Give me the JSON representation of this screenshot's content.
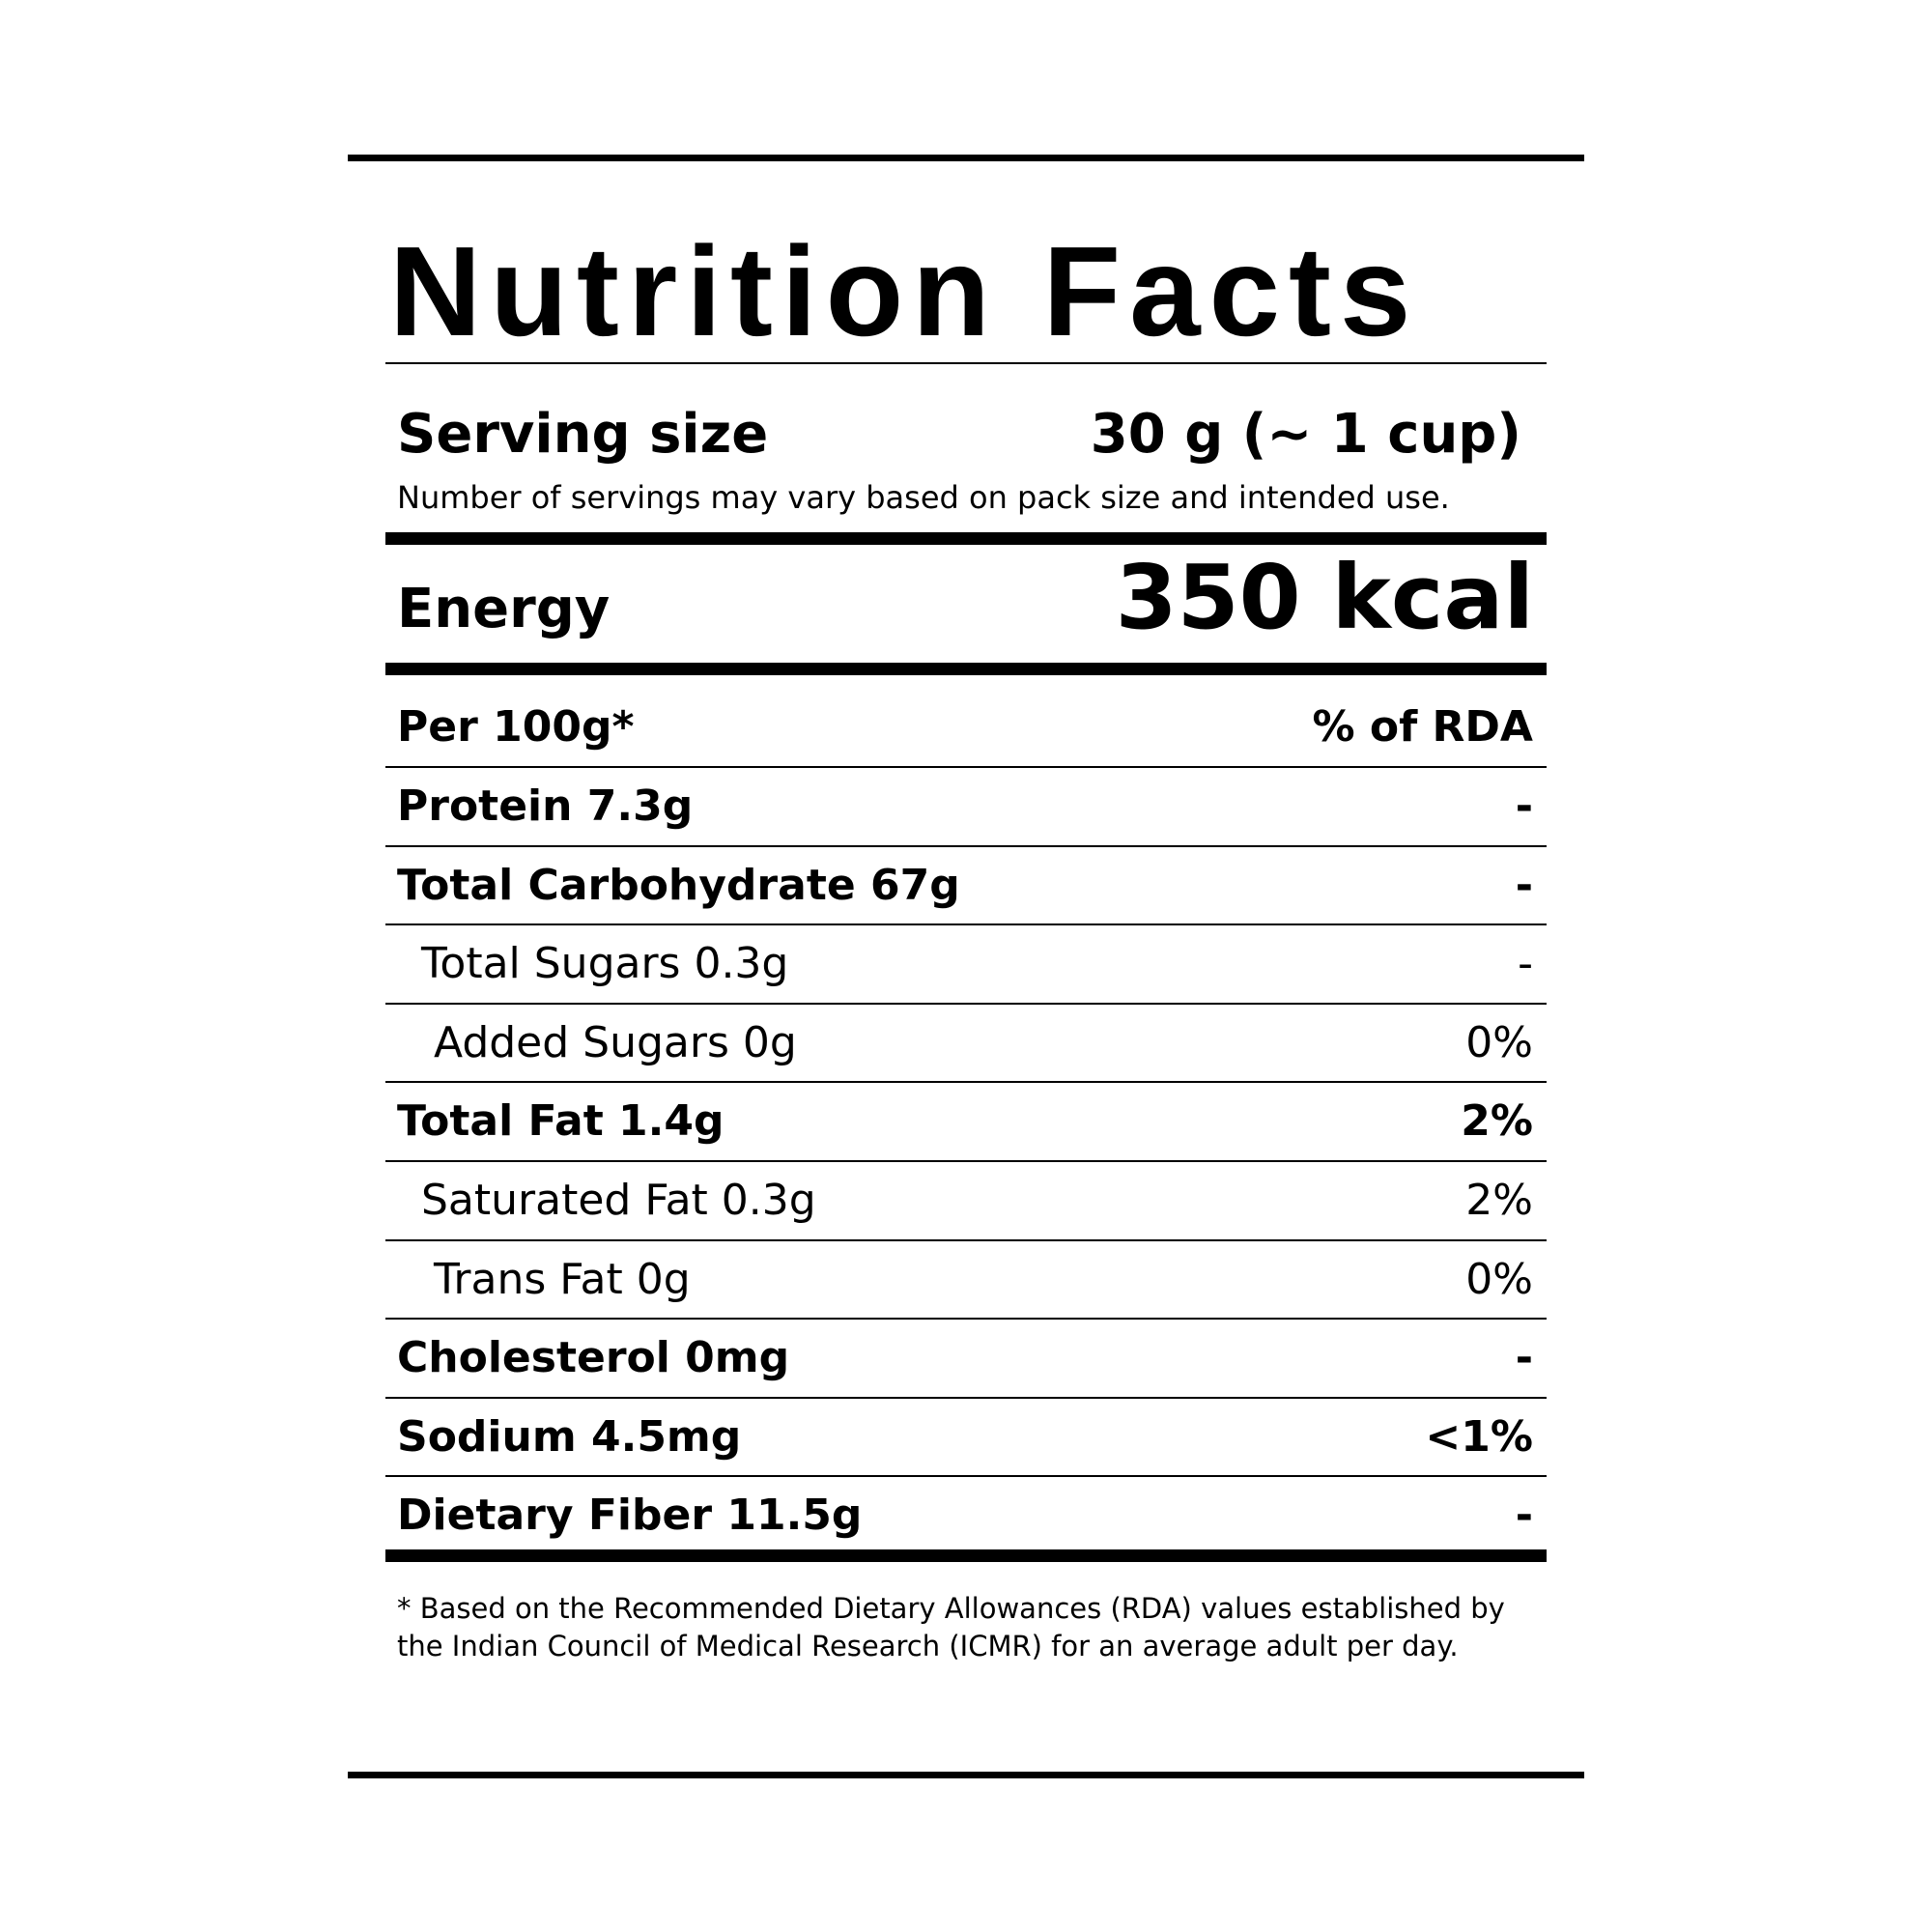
{
  "header": {
    "title": "Nutrition Facts"
  },
  "serving": {
    "label": "Serving size",
    "value": "30 g (~ 1 cup)",
    "note": "Number of servings may vary based on pack size and intended use."
  },
  "energy": {
    "label": "Energy",
    "value": "350 kcal"
  },
  "table": {
    "header": [
      "Per 100g*",
      "% of RDA"
    ],
    "rows": [
      {
        "label": "Protein 7.3g",
        "rda": "-",
        "bold": true,
        "indent": 0
      },
      {
        "label": "Total Carbohydrate 67g",
        "rda": "-",
        "bold": true,
        "indent": 0
      },
      {
        "label": "Total Sugars 0.3g",
        "rda": "-",
        "bold": false,
        "indent": 1
      },
      {
        "label": "Added Sugars 0g",
        "rda": "0%",
        "bold": false,
        "indent": 2
      },
      {
        "label": "Total Fat 1.4g",
        "rda": "2%",
        "bold": true,
        "indent": 0
      },
      {
        "label": "Saturated Fat 0.3g",
        "rda": "2%",
        "bold": false,
        "indent": 1
      },
      {
        "label": "Trans Fat 0g",
        "rda": "0%",
        "bold": false,
        "indent": 2
      },
      {
        "label": "Cholesterol 0mg",
        "rda": "-",
        "bold": true,
        "indent": 0
      },
      {
        "label": "Sodium 4.5mg",
        "rda": "<1%",
        "bold": true,
        "indent": 0
      },
      {
        "label": "Dietary Fiber 11.5g",
        "rda": "-",
        "bold": true,
        "indent": 0
      }
    ]
  },
  "footnote": [
    "* Based on the Recommended Dietary Allowances (RDA) values established by",
    "the Indian Council of Medical Research (ICMR) for an average adult per day."
  ]
}
